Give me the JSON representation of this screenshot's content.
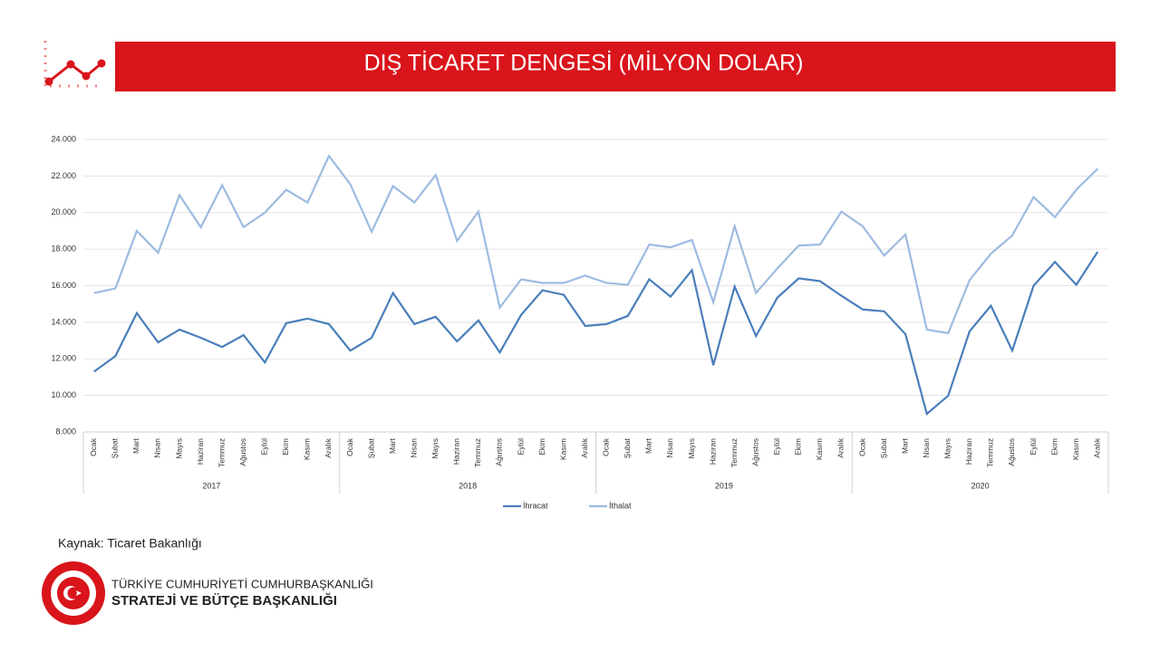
{
  "header": {
    "title": "DIŞ TİCARET DENGESİ (MİLYON DOLAR)"
  },
  "chart_data": {
    "type": "line",
    "categories": [
      "Ocak",
      "Şubat",
      "Mart",
      "Nisan",
      "Mayıs",
      "Haziran",
      "Temmuz",
      "Ağustos",
      "Eylül",
      "Ekim",
      "Kasım",
      "Aralık",
      "Ocak",
      "Şubat",
      "Mart",
      "Nisan",
      "Mayıs",
      "Haziran",
      "Temmuz",
      "Ağustos",
      "Eylül",
      "Ekim",
      "Kasım",
      "Aralık",
      "Ocak",
      "Şubat",
      "Mart",
      "Nisan",
      "Mayıs",
      "Haziran",
      "Temmuz",
      "Ağustos",
      "Eylül",
      "Ekim",
      "Kasım",
      "Aralık",
      "Ocak",
      "Şubat",
      "Mart",
      "Nisan",
      "Mayıs",
      "Haziran",
      "Temmuz",
      "Ağustos",
      "Eylül",
      "Ekim",
      "Kasım",
      "Aralık"
    ],
    "groups": [
      "2017",
      "2018",
      "2019",
      "2020"
    ],
    "series": [
      {
        "name": "İhracat",
        "color": "#4a7ebb",
        "values": [
          11300,
          12150,
          14500,
          12900,
          13600,
          13150,
          12650,
          13300,
          11800,
          13950,
          14200,
          13900,
          12450,
          13150,
          15600,
          13900,
          14300,
          12950,
          14100,
          12350,
          14400,
          15750,
          15500,
          13800,
          13900,
          14350,
          16350,
          15400,
          16850,
          11650,
          15950,
          13250,
          15350,
          16400,
          16250,
          15450,
          14700,
          14600,
          13350,
          8990,
          9980,
          13500,
          14900,
          12450,
          16000,
          17300,
          16050,
          17850
        ]
      },
      {
        "name": "İthalat",
        "color": "#9dbbe0",
        "values": [
          15600,
          15850,
          19000,
          17800,
          20950,
          19200,
          21500,
          19200,
          20000,
          21250,
          20550,
          23100,
          21550,
          18950,
          21450,
          20550,
          22050,
          18450,
          20050,
          14800,
          16350,
          16150,
          16150,
          16550,
          16150,
          16050,
          18250,
          18100,
          18500,
          15100,
          19250,
          15600,
          16950,
          18200,
          18250,
          20050,
          19250,
          17650,
          18800,
          13600,
          13400,
          16300,
          17750,
          18750,
          20850,
          19750,
          21250,
          22400
        ]
      }
    ],
    "ylim": [
      8000,
      24000
    ],
    "yticks": [
      {
        "value": 8000,
        "label": "8.000"
      },
      {
        "value": 10000,
        "label": "10.000"
      },
      {
        "value": 12000,
        "label": "12.000"
      },
      {
        "value": 14000,
        "label": "14.000"
      },
      {
        "value": 16000,
        "label": "16.000"
      },
      {
        "value": 18000,
        "label": "18.000"
      },
      {
        "value": 20000,
        "label": "20.000"
      },
      {
        "value": 22000,
        "label": "22.000"
      },
      {
        "value": 24000,
        "label": "24.000"
      }
    ],
    "grid": true,
    "legend": "bottom"
  },
  "source": "Kaynak: Ticaret Bakanlığı",
  "footer": {
    "line1": "TÜRKİYE CUMHURİYETİ CUMHURBAŞKANLIĞI",
    "line2": "STRATEJİ VE BÜTÇE BAŞKANLIĞI"
  }
}
